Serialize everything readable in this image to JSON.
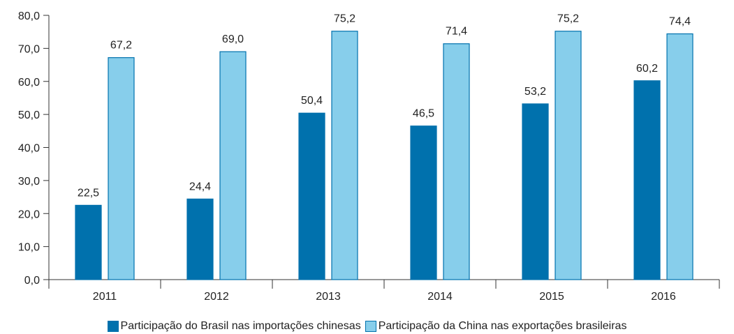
{
  "chart_data": {
    "type": "bar",
    "categories": [
      "2011",
      "2012",
      "2013",
      "2014",
      "2015",
      "2016"
    ],
    "series": [
      {
        "name": "Participação do Brasil nas importações chinesas",
        "values": [
          22.5,
          24.4,
          50.4,
          46.5,
          53.2,
          60.2
        ],
        "labels": [
          "22,5",
          "24,4",
          "50,4",
          "46,5",
          "53,2",
          "60,2"
        ],
        "color": "#0071ad",
        "border": "#0071ad"
      },
      {
        "name": "Participação da China nas exportações brasileiras",
        "values": [
          67.2,
          69.0,
          75.2,
          71.4,
          75.2,
          74.4
        ],
        "labels": [
          "67,2",
          "69,0",
          "75,2",
          "71,4",
          "75,2",
          "74,4"
        ],
        "color": "#87ceeb",
        "border": "#0071ad"
      }
    ],
    "ylim": [
      0,
      80
    ],
    "yticks": [
      "0,0",
      "10,0",
      "20,0",
      "30,0",
      "40,0",
      "50,0",
      "60,0",
      "70,0",
      "80,0"
    ],
    "grid": false,
    "legend_position": "bottom"
  }
}
